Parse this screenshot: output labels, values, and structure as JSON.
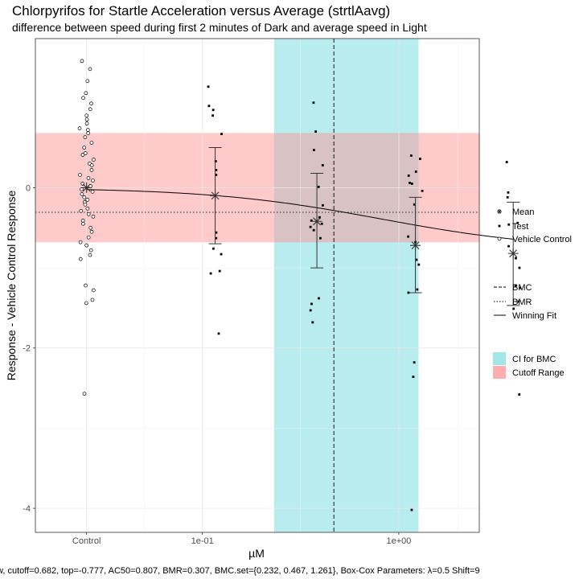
{
  "chart_data": {
    "type": "scatter",
    "title": "Chlorpyrifos for Startle Acceleration versus Average (strtlAavg)",
    "subtitle": "difference between speed during first 2 minutes of Dark and average speed in Light",
    "xlabel": "µM",
    "ylabel": "Response - Vehicle Control Response",
    "footer": "w, cutoff=0.682, top=-0.777, AC50=0.807, BMR=0.307, BMC.set={0.232, 0.467, 1.261}, Box-Cox Parameters: λ=0.5 Shift=9",
    "x_scale": "log10",
    "xlim": [
      0.0141,
      2.57
    ],
    "ylim": [
      -4.3,
      1.86
    ],
    "x_ticks": [
      {
        "label": "Control",
        "value": 0.0257
      },
      {
        "label": "1e-01",
        "value": 0.1
      },
      {
        "label": "1e+00",
        "value": 1.0
      }
    ],
    "y_ticks": [
      {
        "label": "0",
        "value": 0
      },
      {
        "label": "-2",
        "value": -2
      },
      {
        "label": "-4",
        "value": -4
      }
    ],
    "grid": true,
    "legend_position": "right",
    "colors": {
      "ci_band": "#b8ecee",
      "cutoff_band": "#ffcaca",
      "overlap": "#d9c2c4",
      "errorbar": "#333333",
      "fit_line": "#000000"
    },
    "cutoff_range": [
      -0.682,
      0.682
    ],
    "ci_for_bmc": [
      0.232,
      1.261
    ],
    "bmc": 0.467,
    "bmr_line": -0.307,
    "fit": {
      "top": -0.777,
      "ac50": 0.807,
      "n": 1
    },
    "vehicle_control": {
      "x": 0.0257,
      "points": [
        1.58,
        1.48,
        1.33,
        1.18,
        1.12,
        1.05,
        0.98,
        0.9,
        0.85,
        0.8,
        0.74,
        0.72,
        0.68,
        0.63,
        0.56,
        0.5,
        0.43,
        0.41,
        0.35,
        0.3,
        0.28,
        0.22,
        0.16,
        0.12,
        0.09,
        0.05,
        0.02,
        -0.02,
        -0.05,
        -0.08,
        -0.12,
        -0.15,
        -0.18,
        -0.21,
        -0.26,
        -0.29,
        -0.33,
        -0.36,
        -0.41,
        -0.45,
        -0.5,
        -0.55,
        -0.62,
        -0.68,
        -0.72,
        -0.78,
        -0.84,
        -0.89,
        -1.22,
        -1.28,
        -1.4,
        -1.44,
        -2.57
      ]
    },
    "test": [
      {
        "x": 0.1161,
        "mean": -0.1,
        "upper": 0.5,
        "lower": -0.7,
        "points": [
          1.26,
          1.02,
          0.97,
          0.9,
          0.67,
          0.33,
          0.22,
          0.16,
          -0.56,
          -0.63,
          -0.76,
          -0.83,
          -1.04,
          -1.07,
          -1.82
        ]
      },
      {
        "x": 0.3827,
        "mean": -0.42,
        "upper": 0.18,
        "lower": -1.0,
        "points": [
          1.06,
          0.7,
          0.47,
          0.28,
          0.01,
          -0.22,
          -0.37,
          -0.41,
          -0.45,
          -0.49,
          -0.53,
          -0.63,
          -1.38,
          -1.45,
          -1.53,
          -1.68
        ]
      },
      {
        "x": 1.215,
        "mean": -0.72,
        "upper": -0.12,
        "lower": -1.31,
        "points": [
          0.4,
          0.36,
          0.2,
          0.15,
          0.06,
          0.05,
          -0.04,
          -0.21,
          -0.61,
          -0.68,
          -0.9,
          -0.96,
          -1.27,
          -1.31,
          -2.18,
          -2.36,
          -4.02
        ]
      },
      {
        "x": 3.825,
        "mean": -0.82,
        "upper": -0.18,
        "lower": -1.47,
        "points": [
          0.32,
          -0.06,
          -0.12,
          -0.44,
          -0.46,
          -0.73,
          -0.88,
          -1.0,
          -1.22,
          -1.25,
          -1.42,
          -1.51,
          -2.58
        ]
      }
    ],
    "legend": {
      "points": [
        "Mean",
        "Test",
        "Vehicle Control"
      ],
      "lines": [
        "BMC",
        "BMR",
        "Winning Fit"
      ],
      "fills": [
        "CI for BMC",
        "Cutoff Range"
      ]
    }
  }
}
